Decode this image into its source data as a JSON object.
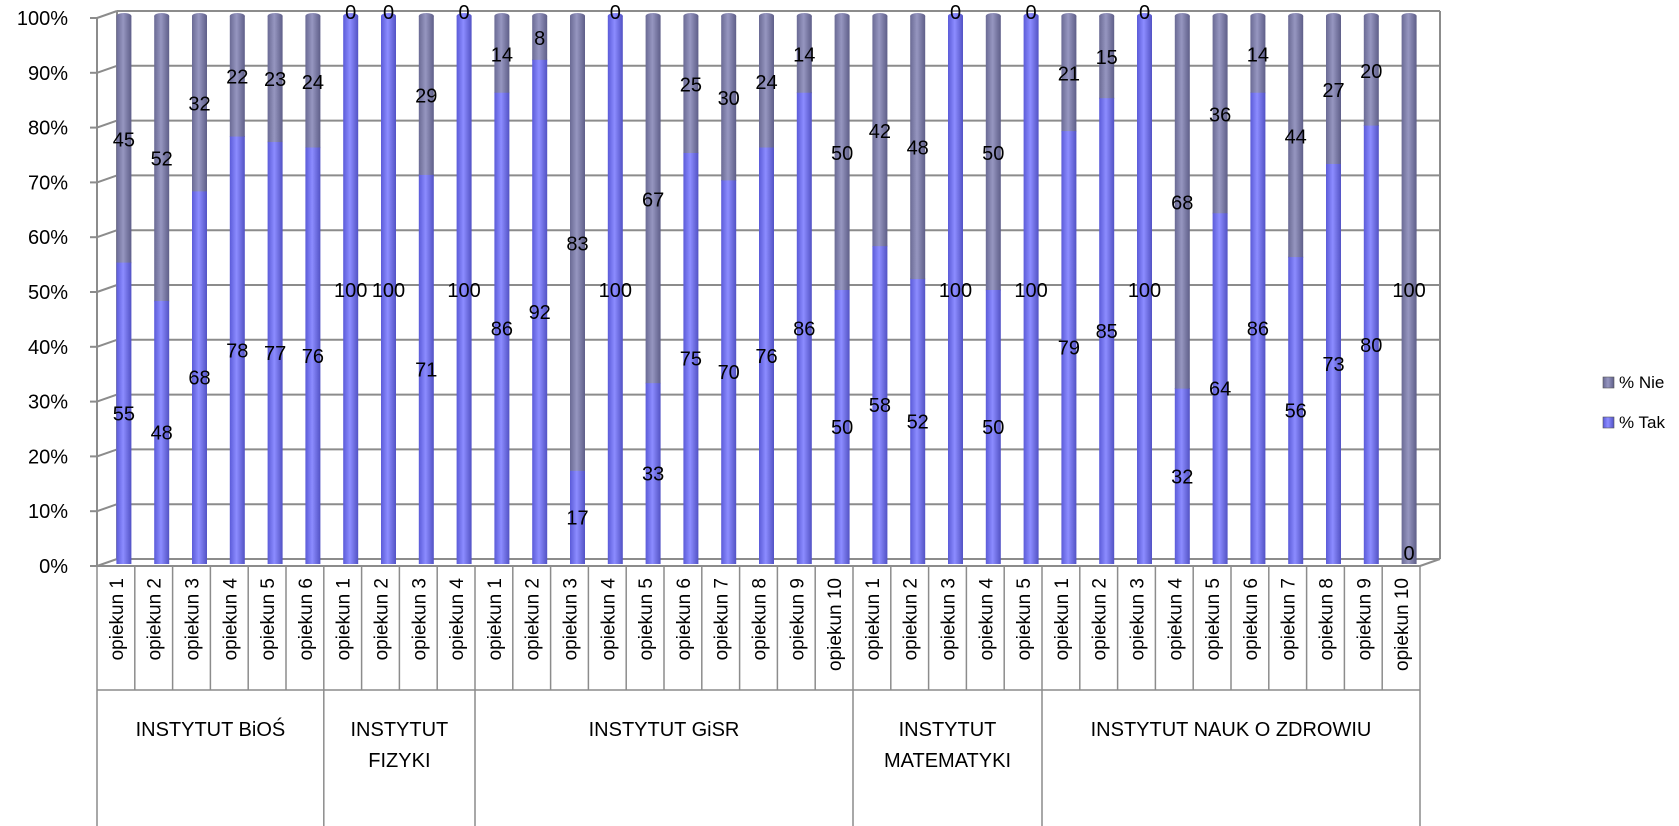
{
  "chart_data": {
    "type": "bar",
    "stacked": true,
    "percent": true,
    "categories": [
      "opiekun 1",
      "opiekun 2",
      "opiekun 3",
      "opiekun 4",
      "opiekun 5",
      "opiekun 6",
      "opiekun 1",
      "opiekun 2",
      "opiekun 3",
      "opiekun 4",
      "opiekun 1",
      "opiekun 2",
      "opiekun 3",
      "opiekun 4",
      "opiekun 5",
      "opiekun 6",
      "opiekun 7",
      "opiekun 8",
      "opiekun 9",
      "opiekun 10",
      "opiekun 1",
      "opiekun 2",
      "opiekun 3",
      "opiekun 4",
      "opiekun 5",
      "opiekun 1",
      "opiekun 2",
      "opiekun 3",
      "opiekun 4",
      "opiekun 5",
      "opiekun 6",
      "opiekun 7",
      "opiekun 8",
      "opiekun 9",
      "opiekun 10"
    ],
    "groups": [
      {
        "label": "INSTYTUT BiOŚ",
        "count": 6
      },
      {
        "label": "INSTYTUT FIZYKI",
        "count": 4
      },
      {
        "label": "INSTYTUT GiSR",
        "count": 10
      },
      {
        "label": "INSTYTUT MATEMATYKI",
        "count": 5
      },
      {
        "label": "INSTYTUT NAUK O ZDROWIU",
        "count": 10
      }
    ],
    "series": [
      {
        "name": "% Tak",
        "color": "#7b7bf0",
        "values": [
          55,
          48,
          68,
          78,
          77,
          76,
          100,
          100,
          71,
          100,
          86,
          92,
          17,
          100,
          33,
          75,
          70,
          76,
          86,
          50,
          58,
          52,
          100,
          50,
          100,
          79,
          85,
          100,
          32,
          64,
          86,
          56,
          73,
          80,
          0
        ]
      },
      {
        "name": "% Nie",
        "color": "#8a8ab2",
        "values": [
          45,
          52,
          32,
          22,
          23,
          24,
          0,
          0,
          29,
          0,
          14,
          8,
          83,
          0,
          67,
          25,
          30,
          24,
          14,
          50,
          42,
          48,
          0,
          50,
          0,
          21,
          15,
          0,
          68,
          36,
          14,
          44,
          27,
          20,
          100
        ]
      }
    ],
    "y_tick_labels": [
      "0%",
      "10%",
      "20%",
      "30%",
      "40%",
      "50%",
      "60%",
      "70%",
      "80%",
      "90%",
      "100%"
    ],
    "ylim": [
      0,
      100
    ],
    "grid": true,
    "legend": "right"
  }
}
